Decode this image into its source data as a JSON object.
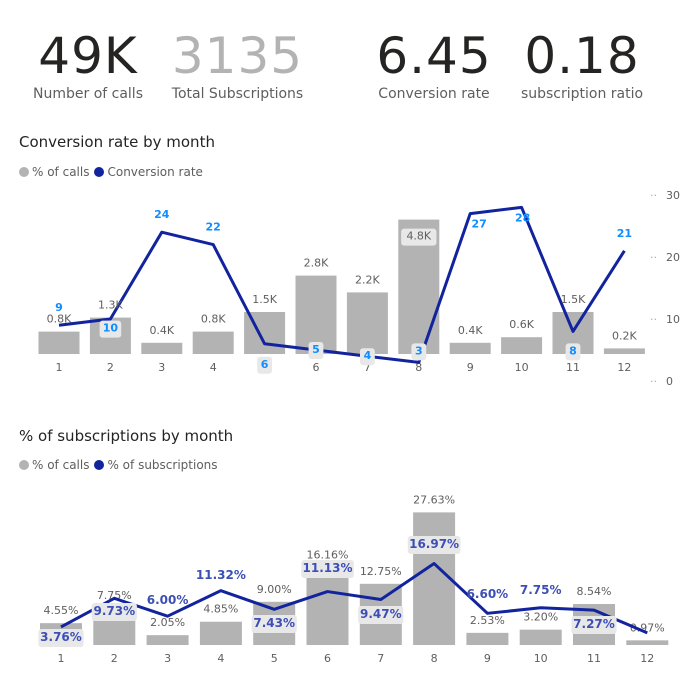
{
  "kpis": [
    {
      "value": "49K",
      "label": "Number of calls",
      "muted": false
    },
    {
      "value": "3135",
      "label": "Total Subscriptions",
      "muted": true
    },
    {
      "value": "6.45",
      "label": "Conversion rate",
      "muted": false
    },
    {
      "value": "0.18",
      "label": "subscription ratio",
      "muted": false
    }
  ],
  "colors": {
    "bar": "#b3b3b3",
    "line": "#12239e",
    "line_label": "#118dff",
    "line_label2": "#3d4fb5",
    "label_bg": "#e8e8e8",
    "text": "#605e5c"
  },
  "chart_data": [
    {
      "type": "bar",
      "title": "Conversion rate by month",
      "legend": [
        {
          "name": "% of calls",
          "color": "#b3b3b3"
        },
        {
          "name": "Conversion rate",
          "color": "#12239e"
        }
      ],
      "legend_position": "top-left",
      "categories": [
        "1",
        "2",
        "3",
        "4",
        "5",
        "6",
        "7",
        "8",
        "9",
        "10",
        "11",
        "12"
      ],
      "series": [
        {
          "name": "% of calls",
          "type": "bar",
          "values": [
            0.8,
            1.3,
            0.4,
            0.8,
            1.5,
            2.8,
            2.2,
            4.8,
            0.4,
            0.6,
            1.5,
            0.2
          ],
          "labels": [
            "0.8K",
            "1.3K",
            "0.4K",
            "0.8K",
            "1.5K",
            "2.8K",
            "2.2K",
            "4.8K",
            "0.4K",
            "0.6K",
            "1.5K",
            "0.2K"
          ]
        },
        {
          "name": "Conversion rate",
          "type": "line",
          "axis": "right",
          "values": [
            9,
            10,
            24,
            22,
            6,
            5,
            4,
            3,
            27,
            28,
            8,
            21
          ],
          "labels": [
            "9",
            "10",
            "24",
            "22",
            "6",
            "5",
            "4",
            "3",
            "27",
            "28",
            "8",
            "21"
          ]
        }
      ],
      "bar_max": 5.0,
      "y2_ticks": [
        "0",
        "10",
        "20",
        "30"
      ],
      "y2lim": [
        0,
        30
      ],
      "xlabel": "",
      "ylabel": ""
    },
    {
      "type": "bar",
      "title": "% of subscriptions by month",
      "legend": [
        {
          "name": "% of calls",
          "color": "#b3b3b3"
        },
        {
          "name": "% of subscriptions",
          "color": "#12239e"
        }
      ],
      "legend_position": "top-left",
      "categories": [
        "1",
        "2",
        "3",
        "4",
        "5",
        "6",
        "7",
        "8",
        "9",
        "10",
        "11",
        "12"
      ],
      "series": [
        {
          "name": "% of calls",
          "type": "bar",
          "values": [
            4.55,
            7.75,
            2.05,
            4.85,
            9.0,
            16.16,
            12.75,
            27.63,
            2.53,
            3.2,
            8.54,
            0.97
          ],
          "labels": [
            "4.55%",
            "7.75%",
            "2.05%",
            "4.85%",
            "9.00%",
            "16.16%",
            "12.75%",
            "27.63%",
            "2.53%",
            "3.20%",
            "8.54%",
            "0.97%"
          ]
        },
        {
          "name": "% of subscriptions",
          "type": "line",
          "values": [
            3.76,
            9.73,
            6.0,
            11.32,
            7.43,
            11.13,
            9.47,
            16.97,
            6.6,
            7.75,
            7.27,
            2.53
          ],
          "labels": [
            "3.76%",
            "9.73%",
            "6.00%",
            "11.32%",
            "7.43%",
            "11.13%",
            "9.47%",
            "16.97%",
            "6.60%",
            "7.75%",
            "7.27%",
            ""
          ]
        }
      ],
      "ylim": [
        0,
        28
      ],
      "xlabel": "",
      "ylabel": ""
    }
  ]
}
